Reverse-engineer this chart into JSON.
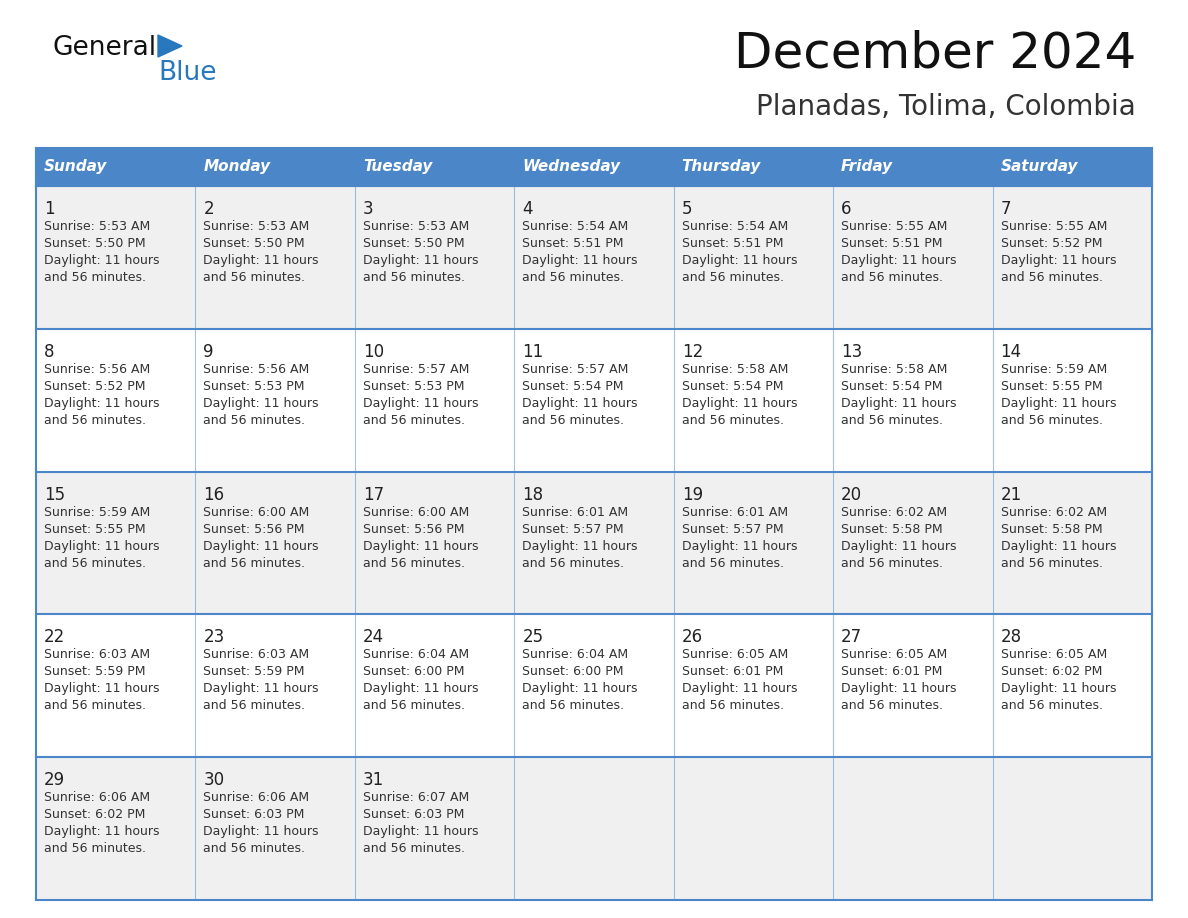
{
  "title": "December 2024",
  "subtitle": "Planadas, Tolima, Colombia",
  "header_color": "#4a86c8",
  "header_text_color": "#ffffff",
  "days_of_week": [
    "Sunday",
    "Monday",
    "Tuesday",
    "Wednesday",
    "Thursday",
    "Friday",
    "Saturday"
  ],
  "cell_bg_white": "#ffffff",
  "cell_bg_gray": "#f0f0f0",
  "border_color": "#4a86c8",
  "day_num_color": "#222222",
  "text_color": "#333333",
  "logo_general_color": "#111111",
  "logo_blue_color": "#2878be",
  "weeks": [
    [
      {
        "day": 1,
        "sunrise": "5:53 AM",
        "sunset": "5:50 PM"
      },
      {
        "day": 2,
        "sunrise": "5:53 AM",
        "sunset": "5:50 PM"
      },
      {
        "day": 3,
        "sunrise": "5:53 AM",
        "sunset": "5:50 PM"
      },
      {
        "day": 4,
        "sunrise": "5:54 AM",
        "sunset": "5:51 PM"
      },
      {
        "day": 5,
        "sunrise": "5:54 AM",
        "sunset": "5:51 PM"
      },
      {
        "day": 6,
        "sunrise": "5:55 AM",
        "sunset": "5:51 PM"
      },
      {
        "day": 7,
        "sunrise": "5:55 AM",
        "sunset": "5:52 PM"
      }
    ],
    [
      {
        "day": 8,
        "sunrise": "5:56 AM",
        "sunset": "5:52 PM"
      },
      {
        "day": 9,
        "sunrise": "5:56 AM",
        "sunset": "5:53 PM"
      },
      {
        "day": 10,
        "sunrise": "5:57 AM",
        "sunset": "5:53 PM"
      },
      {
        "day": 11,
        "sunrise": "5:57 AM",
        "sunset": "5:54 PM"
      },
      {
        "day": 12,
        "sunrise": "5:58 AM",
        "sunset": "5:54 PM"
      },
      {
        "day": 13,
        "sunrise": "5:58 AM",
        "sunset": "5:54 PM"
      },
      {
        "day": 14,
        "sunrise": "5:59 AM",
        "sunset": "5:55 PM"
      }
    ],
    [
      {
        "day": 15,
        "sunrise": "5:59 AM",
        "sunset": "5:55 PM"
      },
      {
        "day": 16,
        "sunrise": "6:00 AM",
        "sunset": "5:56 PM"
      },
      {
        "day": 17,
        "sunrise": "6:00 AM",
        "sunset": "5:56 PM"
      },
      {
        "day": 18,
        "sunrise": "6:01 AM",
        "sunset": "5:57 PM"
      },
      {
        "day": 19,
        "sunrise": "6:01 AM",
        "sunset": "5:57 PM"
      },
      {
        "day": 20,
        "sunrise": "6:02 AM",
        "sunset": "5:58 PM"
      },
      {
        "day": 21,
        "sunrise": "6:02 AM",
        "sunset": "5:58 PM"
      }
    ],
    [
      {
        "day": 22,
        "sunrise": "6:03 AM",
        "sunset": "5:59 PM"
      },
      {
        "day": 23,
        "sunrise": "6:03 AM",
        "sunset": "5:59 PM"
      },
      {
        "day": 24,
        "sunrise": "6:04 AM",
        "sunset": "6:00 PM"
      },
      {
        "day": 25,
        "sunrise": "6:04 AM",
        "sunset": "6:00 PM"
      },
      {
        "day": 26,
        "sunrise": "6:05 AM",
        "sunset": "6:01 PM"
      },
      {
        "day": 27,
        "sunrise": "6:05 AM",
        "sunset": "6:01 PM"
      },
      {
        "day": 28,
        "sunrise": "6:05 AM",
        "sunset": "6:02 PM"
      }
    ],
    [
      {
        "day": 29,
        "sunrise": "6:06 AM",
        "sunset": "6:02 PM"
      },
      {
        "day": 30,
        "sunrise": "6:06 AM",
        "sunset": "6:03 PM"
      },
      {
        "day": 31,
        "sunrise": "6:07 AM",
        "sunset": "6:03 PM"
      },
      null,
      null,
      null,
      null
    ]
  ],
  "figsize": [
    11.88,
    9.18
  ],
  "dpi": 100
}
